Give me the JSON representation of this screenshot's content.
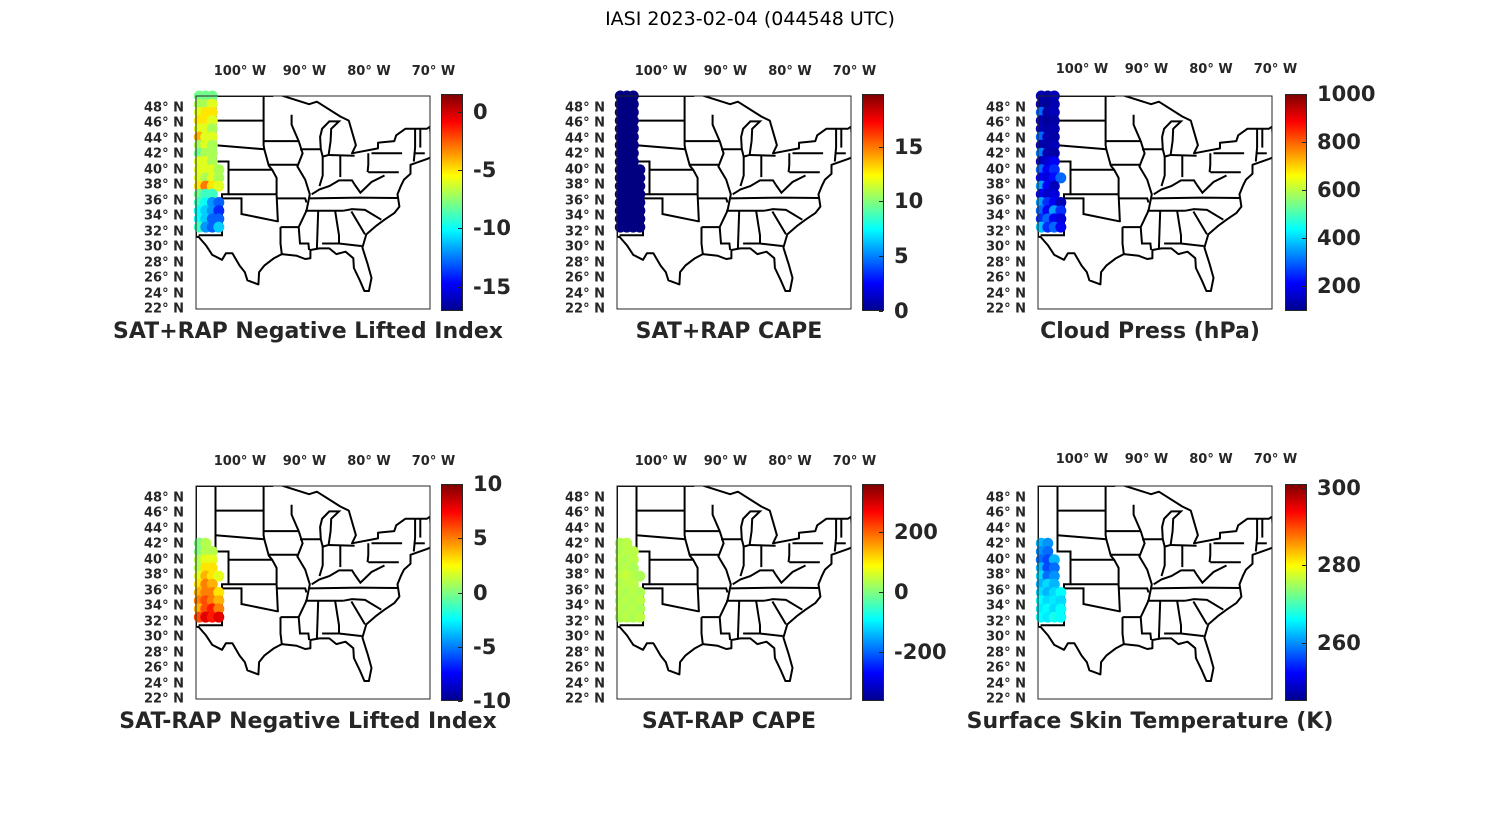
{
  "title": "IASI 2023-02-04 (044548 UTC)",
  "lon_ticks": [
    {
      "lon": -100,
      "label": "100° W"
    },
    {
      "lon": -90,
      "label": "90° W"
    },
    {
      "lon": -80,
      "label": "80° W"
    },
    {
      "lon": -70,
      "label": "70° W"
    }
  ],
  "lat_ticks": [
    {
      "lat": 48,
      "label": "48° N"
    },
    {
      "lat": 46,
      "label": "46° N"
    },
    {
      "lat": 44,
      "label": "44° N"
    },
    {
      "lat": 42,
      "label": "42° N"
    },
    {
      "lat": 40,
      "label": "40° N"
    },
    {
      "lat": 38,
      "label": "38° N"
    },
    {
      "lat": 36,
      "label": "36° N"
    },
    {
      "lat": 34,
      "label": "34° N"
    },
    {
      "lat": 32,
      "label": "32° N"
    },
    {
      "lat": 30,
      "label": "30° N"
    },
    {
      "lat": 28,
      "label": "28° N"
    },
    {
      "lat": 26,
      "label": "26° N"
    },
    {
      "lat": 24,
      "label": "24° N"
    },
    {
      "lat": 22,
      "label": "22° N"
    }
  ],
  "map_extent": {
    "lon": [
      -107,
      -71
    ],
    "lat": [
      23,
      49
    ]
  },
  "colormap": "jet",
  "swath_lons": [
    -106.5,
    -105.5,
    -104.5,
    -103.5
  ],
  "panels": [
    {
      "title": "SAT+RAP Negative Lifted Index",
      "clim": [
        -17.1,
        1.55
      ],
      "cbar_ticks": [
        {
          "v": 0,
          "label": "0"
        },
        {
          "v": -5,
          "label": "-5"
        },
        {
          "v": -10,
          "label": "-10"
        },
        {
          "v": -15,
          "label": "-15"
        }
      ],
      "swath": [
        {
          "lat": 49,
          "v": [
            -8,
            -8,
            -8,
            null
          ]
        },
        {
          "lat": 48,
          "v": [
            -7,
            -7,
            -6,
            null
          ]
        },
        {
          "lat": 47,
          "v": [
            -6,
            -5,
            -5,
            null
          ]
        },
        {
          "lat": 46,
          "v": [
            -5,
            -5,
            -6,
            null
          ]
        },
        {
          "lat": 45,
          "v": [
            -6,
            -6,
            -7,
            null
          ]
        },
        {
          "lat": 44,
          "v": [
            -4,
            -6,
            -6,
            null
          ]
        },
        {
          "lat": 43,
          "v": [
            -7,
            -6,
            -7,
            null
          ]
        },
        {
          "lat": 42,
          "v": [
            -8,
            -7,
            -7,
            null
          ]
        },
        {
          "lat": 41,
          "v": [
            -6,
            -6,
            -7,
            null
          ]
        },
        {
          "lat": 40,
          "v": [
            -6,
            -6,
            -6,
            -7
          ]
        },
        {
          "lat": 39,
          "v": [
            -6,
            -7,
            -6,
            -7
          ]
        },
        {
          "lat": 38,
          "v": [
            -5,
            -3,
            -5,
            -6
          ]
        },
        {
          "lat": 37,
          "v": [
            -8,
            -9,
            -9,
            null
          ]
        },
        {
          "lat": 36,
          "v": [
            -9,
            -10,
            -12,
            -13
          ]
        },
        {
          "lat": 35,
          "v": [
            -10,
            -11,
            -12,
            -14
          ]
        },
        {
          "lat": 34,
          "v": [
            -10,
            -11,
            -13,
            -13
          ]
        },
        {
          "lat": 33,
          "v": [
            -9,
            -12,
            -13,
            -11
          ]
        }
      ]
    },
    {
      "title": "SAT+RAP CAPE",
      "clim": [
        0,
        19.8
      ],
      "cbar_ticks": [
        {
          "v": 15,
          "label": "15"
        },
        {
          "v": 10,
          "label": "10"
        },
        {
          "v": 5,
          "label": "5"
        },
        {
          "v": 0,
          "label": "0"
        }
      ],
      "swath": [
        {
          "lat": 49,
          "v": [
            0,
            0,
            0,
            null
          ]
        },
        {
          "lat": 48,
          "v": [
            0,
            0,
            0,
            null
          ]
        },
        {
          "lat": 47,
          "v": [
            0,
            0,
            0,
            null
          ]
        },
        {
          "lat": 46,
          "v": [
            0,
            0,
            0,
            null
          ]
        },
        {
          "lat": 45,
          "v": [
            0,
            0,
            0,
            null
          ]
        },
        {
          "lat": 44,
          "v": [
            0,
            0,
            0,
            null
          ]
        },
        {
          "lat": 43,
          "v": [
            0,
            0,
            0,
            null
          ]
        },
        {
          "lat": 42,
          "v": [
            0,
            0,
            0,
            null
          ]
        },
        {
          "lat": 41,
          "v": [
            0,
            0,
            0,
            null
          ]
        },
        {
          "lat": 40,
          "v": [
            0,
            0,
            0,
            0
          ]
        },
        {
          "lat": 39,
          "v": [
            0,
            0,
            0,
            0
          ]
        },
        {
          "lat": 38,
          "v": [
            0,
            0,
            0,
            0
          ]
        },
        {
          "lat": 37,
          "v": [
            0,
            0,
            0,
            0
          ]
        },
        {
          "lat": 36,
          "v": [
            0,
            0,
            0,
            0
          ]
        },
        {
          "lat": 35,
          "v": [
            0,
            0,
            0,
            0
          ]
        },
        {
          "lat": 34,
          "v": [
            0,
            0,
            0,
            0
          ]
        },
        {
          "lat": 33,
          "v": [
            0,
            0,
            0,
            0
          ]
        }
      ]
    },
    {
      "title": "Cloud Press (hPa)",
      "clim": [
        97,
        1000
      ],
      "cbar_ticks": [
        {
          "v": 1000,
          "label": "1000"
        },
        {
          "v": 800,
          "label": "800"
        },
        {
          "v": 600,
          "label": "600"
        },
        {
          "v": 400,
          "label": "400"
        },
        {
          "v": 200,
          "label": "200"
        }
      ],
      "swath": [
        {
          "lat": 49,
          "v": [
            140,
            130,
            150,
            null
          ]
        },
        {
          "lat": 48,
          "v": [
            130,
            120,
            140,
            null
          ]
        },
        {
          "lat": 47,
          "v": [
            300,
            130,
            150,
            null
          ]
        },
        {
          "lat": 46,
          "v": [
            140,
            120,
            130,
            null
          ]
        },
        {
          "lat": 45,
          "v": [
            150,
            130,
            140,
            null
          ]
        },
        {
          "lat": 44,
          "v": [
            300,
            140,
            130,
            null
          ]
        },
        {
          "lat": 43,
          "v": [
            140,
            130,
            150,
            null
          ]
        },
        {
          "lat": 42,
          "v": [
            320,
            140,
            130,
            null
          ]
        },
        {
          "lat": 41,
          "v": [
            150,
            170,
            200,
            null
          ]
        },
        {
          "lat": 40,
          "v": [
            300,
            200,
            250,
            null
          ]
        },
        {
          "lat": 39,
          "v": [
            200,
            180,
            220,
            300
          ]
        },
        {
          "lat": 38,
          "v": [
            350,
            200,
            150,
            null
          ]
        },
        {
          "lat": 37,
          "v": [
            200,
            160,
            180,
            null
          ]
        },
        {
          "lat": 36,
          "v": [
            350,
            250,
            200,
            150
          ]
        },
        {
          "lat": 35,
          "v": [
            300,
            200,
            350,
            250
          ]
        },
        {
          "lat": 34,
          "v": [
            250,
            300,
            200,
            180
          ]
        },
        {
          "lat": 33,
          "v": [
            380,
            250,
            300,
            200
          ]
        }
      ]
    },
    {
      "title": "SAT-RAP Negative Lifted Index",
      "clim": [
        -10,
        10
      ],
      "cbar_ticks": [
        {
          "v": 10,
          "label": "10"
        },
        {
          "v": 5,
          "label": "5"
        },
        {
          "v": 0,
          "label": "0"
        },
        {
          "v": -5,
          "label": "-5"
        },
        {
          "v": -10,
          "label": "-10"
        }
      ],
      "swath": [
        {
          "lat": 42,
          "v": [
            0,
            1,
            null,
            null
          ]
        },
        {
          "lat": 41,
          "v": [
            0,
            1,
            1,
            null
          ]
        },
        {
          "lat": 40,
          "v": [
            1,
            2,
            2,
            null
          ]
        },
        {
          "lat": 39,
          "v": [
            1,
            3,
            3,
            null
          ]
        },
        {
          "lat": 38,
          "v": [
            2,
            4,
            3,
            2
          ]
        },
        {
          "lat": 37,
          "v": [
            3,
            5,
            4,
            null
          ]
        },
        {
          "lat": 36,
          "v": [
            4,
            5,
            5,
            3
          ]
        },
        {
          "lat": 35,
          "v": [
            5,
            6,
            5,
            4
          ]
        },
        {
          "lat": 34,
          "v": [
            4,
            6,
            7,
            5
          ]
        },
        {
          "lat": 33,
          "v": [
            6,
            8,
            7,
            8
          ]
        }
      ]
    },
    {
      "title": "SAT-RAP CAPE",
      "clim": [
        -363,
        360
      ],
      "cbar_ticks": [
        {
          "v": 200,
          "label": "200"
        },
        {
          "v": 0,
          "label": "0"
        },
        {
          "v": -200,
          "label": "-200"
        }
      ],
      "swath": [
        {
          "lat": 42,
          "v": [
            30,
            40,
            null,
            null
          ]
        },
        {
          "lat": 41,
          "v": [
            30,
            40,
            40,
            null
          ]
        },
        {
          "lat": 40,
          "v": [
            40,
            30,
            40,
            null
          ]
        },
        {
          "lat": 39,
          "v": [
            30,
            40,
            30,
            null
          ]
        },
        {
          "lat": 38,
          "v": [
            40,
            50,
            40,
            30
          ]
        },
        {
          "lat": 37,
          "v": [
            30,
            40,
            40,
            null
          ]
        },
        {
          "lat": 36,
          "v": [
            40,
            30,
            40,
            30
          ]
        },
        {
          "lat": 35,
          "v": [
            30,
            40,
            30,
            40
          ]
        },
        {
          "lat": 34,
          "v": [
            40,
            30,
            40,
            30
          ]
        },
        {
          "lat": 33,
          "v": [
            30,
            40,
            30,
            40
          ]
        }
      ]
    },
    {
      "title": "Surface Skin Temperature (K)",
      "clim": [
        245,
        301
      ],
      "cbar_ticks": [
        {
          "v": 300,
          "label": "300"
        },
        {
          "v": 280,
          "label": "280"
        },
        {
          "v": 260,
          "label": "260"
        }
      ],
      "swath": [
        {
          "lat": 42,
          "v": [
            262,
            260,
            null,
            null
          ]
        },
        {
          "lat": 41,
          "v": [
            260,
            258,
            null,
            null
          ]
        },
        {
          "lat": 40,
          "v": [
            258,
            256,
            262,
            null
          ]
        },
        {
          "lat": 39,
          "v": [
            262,
            256,
            258,
            null
          ]
        },
        {
          "lat": 38,
          "v": [
            264,
            258,
            260,
            null
          ]
        },
        {
          "lat": 37,
          "v": [
            262,
            264,
            262,
            null
          ]
        },
        {
          "lat": 36,
          "v": [
            264,
            262,
            264,
            266
          ]
        },
        {
          "lat": 35,
          "v": [
            266,
            264,
            265,
            264
          ]
        },
        {
          "lat": 34,
          "v": [
            265,
            266,
            264,
            266
          ]
        },
        {
          "lat": 33,
          "v": [
            266,
            265,
            267,
            266
          ]
        }
      ]
    }
  ]
}
